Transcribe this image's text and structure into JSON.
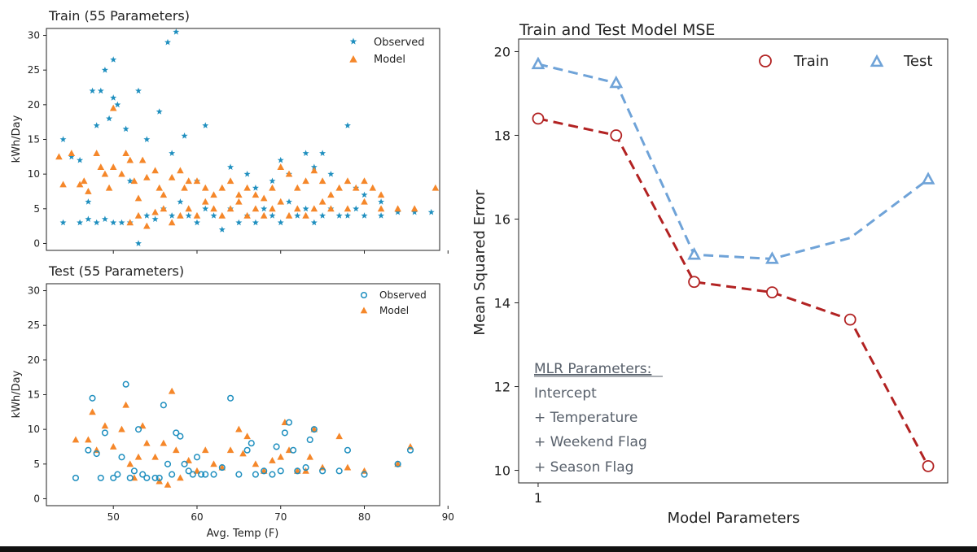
{
  "colors": {
    "observed": "#1f8fbf",
    "model": "#f5872a",
    "train": "#b22222",
    "test": "#6fa3d8",
    "annotation": "#58606b",
    "axis": "#222222"
  },
  "chart_data": [
    {
      "type": "scatter",
      "title": "Train (55 Parameters)",
      "xlabel": "",
      "ylabel": "kWh/Day",
      "xlim": [
        42,
        89
      ],
      "ylim": [
        -1,
        31
      ],
      "xticks": [
        50,
        60,
        70,
        80,
        90
      ],
      "yticks": [
        0,
        5,
        10,
        15,
        20,
        25,
        30
      ],
      "legend": {
        "position": "top-right",
        "entries": [
          "Observed",
          "Model"
        ]
      },
      "series": [
        {
          "name": "Observed",
          "marker": "star",
          "points": [
            [
              44,
              15
            ],
            [
              45,
              12.5
            ],
            [
              46,
              12
            ],
            [
              47,
              6
            ],
            [
              47.5,
              22
            ],
            [
              48,
              17
            ],
            [
              48.5,
              22
            ],
            [
              49,
              25
            ],
            [
              49.5,
              18
            ],
            [
              50,
              21
            ],
            [
              50,
              26.5
            ],
            [
              50.5,
              20
            ],
            [
              51.5,
              16.5
            ],
            [
              52,
              9
            ],
            [
              53,
              22
            ],
            [
              54,
              15
            ],
            [
              55.5,
              19
            ],
            [
              56.5,
              29
            ],
            [
              57,
              13
            ],
            [
              57.5,
              30.5
            ],
            [
              58.5,
              15.5
            ],
            [
              60,
              9
            ],
            [
              61,
              17
            ],
            [
              64,
              11
            ],
            [
              66,
              10
            ],
            [
              67,
              8
            ],
            [
              69,
              9
            ],
            [
              70,
              12
            ],
            [
              71,
              10
            ],
            [
              73,
              13
            ],
            [
              74,
              11
            ],
            [
              75,
              13
            ],
            [
              76,
              10
            ],
            [
              78,
              17
            ],
            [
              79,
              8
            ],
            [
              80,
              7
            ],
            [
              82,
              6
            ],
            [
              84,
              4.5
            ],
            [
              86,
              4.5
            ],
            [
              88,
              4.5
            ],
            [
              44,
              3
            ],
            [
              46,
              3
            ],
            [
              47,
              3.5
            ],
            [
              48,
              3
            ],
            [
              49,
              3.5
            ],
            [
              50,
              3
            ],
            [
              51,
              3
            ],
            [
              52,
              3
            ],
            [
              53,
              0
            ],
            [
              54,
              4
            ],
            [
              55,
              3.5
            ],
            [
              56,
              5
            ],
            [
              57,
              4
            ],
            [
              58,
              6
            ],
            [
              59,
              4
            ],
            [
              60,
              3
            ],
            [
              61,
              5
            ],
            [
              62,
              4
            ],
            [
              63,
              2
            ],
            [
              64,
              5
            ],
            [
              65,
              3
            ],
            [
              66,
              4
            ],
            [
              67,
              3
            ],
            [
              68,
              5
            ],
            [
              69,
              4
            ],
            [
              70,
              3
            ],
            [
              71,
              6
            ],
            [
              72,
              4
            ],
            [
              73,
              5
            ],
            [
              74,
              3
            ],
            [
              75,
              4
            ],
            [
              76,
              5
            ],
            [
              77,
              4
            ],
            [
              78,
              4
            ],
            [
              79,
              5
            ],
            [
              80,
              4
            ],
            [
              82,
              4
            ]
          ]
        },
        {
          "name": "Model",
          "marker": "triangle",
          "points": [
            [
              43.5,
              12.5
            ],
            [
              44,
              8.5
            ],
            [
              45,
              13
            ],
            [
              46,
              8.5
            ],
            [
              46.5,
              9
            ],
            [
              47,
              7.5
            ],
            [
              48,
              13
            ],
            [
              48.5,
              11
            ],
            [
              49,
              10
            ],
            [
              49.5,
              8
            ],
            [
              50,
              19.5
            ],
            [
              50,
              11
            ],
            [
              51,
              10
            ],
            [
              51.5,
              13
            ],
            [
              52,
              12
            ],
            [
              52.5,
              9
            ],
            [
              53,
              6.5
            ],
            [
              53.5,
              12
            ],
            [
              54,
              9.5
            ],
            [
              55,
              10.5
            ],
            [
              55.5,
              8
            ],
            [
              56,
              7
            ],
            [
              57,
              9.5
            ],
            [
              58,
              10.5
            ],
            [
              58.5,
              8
            ],
            [
              59,
              9
            ],
            [
              60,
              9
            ],
            [
              61,
              8
            ],
            [
              62,
              7
            ],
            [
              63,
              8
            ],
            [
              64,
              9
            ],
            [
              65,
              7
            ],
            [
              66,
              8
            ],
            [
              67,
              7
            ],
            [
              68,
              6.5
            ],
            [
              69,
              8
            ],
            [
              70,
              11
            ],
            [
              71,
              10
            ],
            [
              72,
              8
            ],
            [
              73,
              9
            ],
            [
              74,
              10.5
            ],
            [
              75,
              9
            ],
            [
              76,
              7
            ],
            [
              77,
              8
            ],
            [
              78,
              9
            ],
            [
              79,
              8
            ],
            [
              80,
              9
            ],
            [
              81,
              8
            ],
            [
              82,
              7
            ],
            [
              84,
              5
            ],
            [
              86,
              5
            ],
            [
              88.5,
              8
            ],
            [
              52,
              3
            ],
            [
              53,
              4
            ],
            [
              54,
              2.5
            ],
            [
              55,
              4.5
            ],
            [
              56,
              5
            ],
            [
              57,
              3
            ],
            [
              58,
              4
            ],
            [
              59,
              5
            ],
            [
              60,
              4
            ],
            [
              61,
              6
            ],
            [
              62,
              5
            ],
            [
              63,
              4
            ],
            [
              64,
              5
            ],
            [
              65,
              6
            ],
            [
              66,
              4
            ],
            [
              67,
              5
            ],
            [
              68,
              4
            ],
            [
              69,
              5
            ],
            [
              70,
              6
            ],
            [
              71,
              4
            ],
            [
              72,
              5
            ],
            [
              73,
              4
            ],
            [
              74,
              5
            ],
            [
              75,
              6
            ],
            [
              76,
              5
            ],
            [
              78,
              5
            ],
            [
              80,
              6
            ],
            [
              82,
              5
            ]
          ]
        }
      ]
    },
    {
      "type": "scatter",
      "title": "Test (55 Parameters)",
      "xlabel": "Avg. Temp (F)",
      "ylabel": "kWh/Day",
      "xlim": [
        42,
        89
      ],
      "ylim": [
        -1,
        31
      ],
      "xticks": [
        50,
        60,
        70,
        80,
        90
      ],
      "yticks": [
        0,
        5,
        10,
        15,
        20,
        25,
        30
      ],
      "legend": {
        "position": "top-right",
        "entries": [
          "Observed",
          "Model"
        ]
      },
      "series": [
        {
          "name": "Observed",
          "marker": "circle",
          "points": [
            [
              45.5,
              3
            ],
            [
              47,
              7
            ],
            [
              47.5,
              14.5
            ],
            [
              48,
              6.5
            ],
            [
              48.5,
              3
            ],
            [
              49,
              9.5
            ],
            [
              50,
              3
            ],
            [
              50.5,
              3.5
            ],
            [
              51,
              6
            ],
            [
              51.5,
              16.5
            ],
            [
              52,
              3
            ],
            [
              52.5,
              4
            ],
            [
              53,
              10
            ],
            [
              53.5,
              3.5
            ],
            [
              54,
              3
            ],
            [
              55,
              3
            ],
            [
              55.5,
              3
            ],
            [
              56,
              13.5
            ],
            [
              56.5,
              5
            ],
            [
              57,
              3.5
            ],
            [
              57.5,
              9.5
            ],
            [
              58,
              9
            ],
            [
              58.5,
              5
            ],
            [
              59,
              4
            ],
            [
              59.5,
              3.5
            ],
            [
              60,
              6
            ],
            [
              60.5,
              3.5
            ],
            [
              61,
              3.5
            ],
            [
              62,
              3.5
            ],
            [
              63,
              4.5
            ],
            [
              64,
              14.5
            ],
            [
              65,
              3.5
            ],
            [
              66,
              7
            ],
            [
              66.5,
              8
            ],
            [
              67,
              3.5
            ],
            [
              68,
              4
            ],
            [
              69,
              3.5
            ],
            [
              69.5,
              7.5
            ],
            [
              70,
              4
            ],
            [
              70.5,
              9.5
            ],
            [
              71,
              11
            ],
            [
              71.5,
              7
            ],
            [
              72,
              4
            ],
            [
              73,
              4.5
            ],
            [
              73.5,
              8.5
            ],
            [
              74,
              10
            ],
            [
              75,
              4
            ],
            [
              77,
              4
            ],
            [
              78,
              7
            ],
            [
              80,
              3.5
            ],
            [
              84,
              5
            ],
            [
              85.5,
              7
            ]
          ]
        },
        {
          "name": "Model",
          "marker": "triangle",
          "points": [
            [
              45.5,
              8.5
            ],
            [
              47,
              8.5
            ],
            [
              47.5,
              12.5
            ],
            [
              48,
              7
            ],
            [
              49,
              10.5
            ],
            [
              50,
              7.5
            ],
            [
              51,
              10
            ],
            [
              51.5,
              13.5
            ],
            [
              52,
              5
            ],
            [
              52.5,
              3
            ],
            [
              53,
              6
            ],
            [
              53.5,
              10.5
            ],
            [
              54,
              8
            ],
            [
              55,
              6
            ],
            [
              55.5,
              2.5
            ],
            [
              56,
              8
            ],
            [
              56.5,
              2
            ],
            [
              57,
              15.5
            ],
            [
              57.5,
              7
            ],
            [
              58,
              3
            ],
            [
              59,
              5.5
            ],
            [
              60,
              4
            ],
            [
              61,
              7
            ],
            [
              62,
              5
            ],
            [
              63,
              4.5
            ],
            [
              64,
              7
            ],
            [
              65,
              10
            ],
            [
              65.5,
              6.5
            ],
            [
              66,
              9
            ],
            [
              67,
              5
            ],
            [
              68,
              4
            ],
            [
              69,
              5.5
            ],
            [
              70,
              6
            ],
            [
              70.5,
              11
            ],
            [
              71,
              7
            ],
            [
              72,
              4
            ],
            [
              73,
              4
            ],
            [
              73.5,
              6
            ],
            [
              74,
              10
            ],
            [
              75,
              4.5
            ],
            [
              77,
              9
            ],
            [
              78,
              4.5
            ],
            [
              80,
              4
            ],
            [
              84,
              5
            ],
            [
              85.5,
              7.5
            ]
          ]
        }
      ]
    },
    {
      "type": "line",
      "title": "Train and Test Model MSE",
      "xlabel": "Model Parameters",
      "ylabel": "Mean Squared Error",
      "xlim": [
        0.75,
        6.25
      ],
      "ylim": [
        9.7,
        20.3
      ],
      "xticks": [
        1
      ],
      "yticks": [
        10,
        12,
        14,
        16,
        18,
        20
      ],
      "legend": {
        "position": "top-right",
        "entries": [
          "Train",
          "Test"
        ]
      },
      "series": [
        {
          "name": "Train",
          "marker": "circle",
          "x": [
            1,
            2,
            3,
            4,
            5,
            6
          ],
          "values": [
            18.4,
            18.0,
            14.5,
            14.25,
            13.6,
            10.1
          ]
        },
        {
          "name": "Test",
          "marker": "triangle",
          "x": [
            1,
            2,
            3,
            4,
            5,
            6
          ],
          "values": [
            19.7,
            19.25,
            15.15,
            15.05,
            null,
            16.95
          ],
          "line_through": [
            [
              5,
              15.55
            ]
          ]
        }
      ],
      "annotation": {
        "heading": "MLR Parameters:",
        "lines": [
          "Intercept",
          "+ Temperature",
          "+ Weekend Flag",
          "+ Season Flag"
        ]
      }
    }
  ]
}
